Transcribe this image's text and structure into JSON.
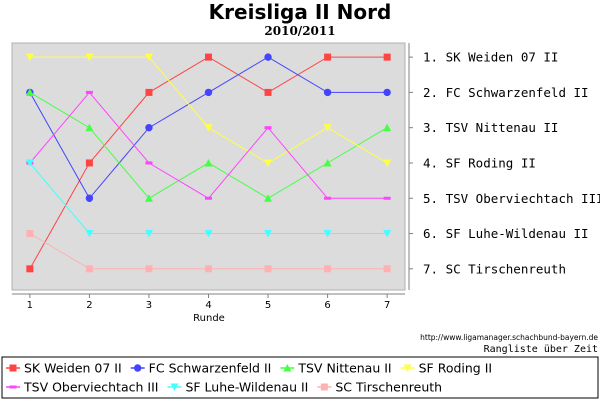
{
  "title": "Kreisliga II Nord",
  "subtitle": "2010/2011",
  "source_url": "http://www.ligamanager.schachbund-bayern.de",
  "caption": "Rangliste über Zeit",
  "chart_data": {
    "type": "line",
    "xlabel": "Runde",
    "x": [
      1,
      2,
      3,
      4,
      5,
      6,
      7
    ],
    "xlim": [
      0.7,
      7.3
    ],
    "ylim": [
      7.6,
      0.6
    ],
    "y_inverted": true,
    "grid": false,
    "legend_placement": "bottom",
    "rank_labels": [
      "1. SK Weiden 07 II",
      "2. FC Schwarzenfeld II",
      "3. TSV Nittenau II",
      "4. SF Roding II",
      "5. TSV Oberviechtach III",
      "6. SF Luhe-Wildenau II",
      "7. SC Tirschenreuth"
    ],
    "series": [
      {
        "name": "SK Weiden 07 II",
        "color": "#ff4444",
        "marker": "square",
        "values": [
          7,
          4,
          2,
          1,
          2,
          1,
          1
        ]
      },
      {
        "name": "FC Schwarzenfeld II",
        "color": "#4444ff",
        "marker": "circle",
        "values": [
          2,
          5,
          3,
          2,
          1,
          2,
          2
        ]
      },
      {
        "name": "TSV Nittenau II",
        "color": "#44ff44",
        "marker": "triangle-up",
        "values": [
          2,
          3,
          5,
          4,
          5,
          4,
          3
        ]
      },
      {
        "name": "SF Roding II",
        "color": "#ffff44",
        "marker": "triangle-down",
        "values": [
          1,
          1,
          1,
          3,
          4,
          3,
          4
        ]
      },
      {
        "name": "TSV Oberviechtach III",
        "color": "#ff44ff",
        "marker": "dash",
        "values": [
          4,
          2,
          4,
          5,
          3,
          5,
          5
        ]
      },
      {
        "name": "SF Luhe-Wildenau II",
        "color": "#44ffff",
        "marker": "triangle-down",
        "values": [
          4,
          6,
          6,
          6,
          6,
          6,
          6
        ]
      },
      {
        "name": "SC Tirschenreuth",
        "color": "#ffb0b0",
        "marker": "square",
        "values": [
          6,
          7,
          7,
          7,
          7,
          7,
          7
        ]
      }
    ]
  },
  "colors": {
    "plot_background": "#dcdcdc",
    "frame": "#b0b0b0"
  }
}
